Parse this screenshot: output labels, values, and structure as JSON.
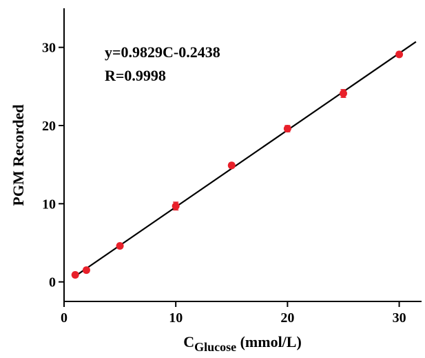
{
  "chart_data": {
    "type": "scatter",
    "title": "",
    "xlabel_main": "C",
    "xlabel_sub": "Glucose",
    "xlabel_unit": " (mmol/L)",
    "ylabel": "PGM Recorded",
    "xlim": [
      0,
      32
    ],
    "ylim": [
      -2.5,
      35
    ],
    "x_ticks": [
      0,
      10,
      20,
      30
    ],
    "x_tick_labels": [
      "0",
      "10",
      "20",
      "30"
    ],
    "y_ticks": [
      0,
      10,
      20,
      30
    ],
    "y_tick_labels": [
      "0",
      "10",
      "20",
      "30"
    ],
    "grid": false,
    "legend": "none",
    "series": [
      {
        "x": [
          1,
          2,
          5,
          10,
          15,
          20,
          25,
          30
        ],
        "y": [
          0.9,
          1.5,
          4.6,
          9.7,
          14.9,
          19.6,
          24.1,
          29.1
        ],
        "error": [
          0.3,
          0.3,
          0.3,
          0.5,
          0.3,
          0.4,
          0.5,
          0.3
        ],
        "color": "#e8202a"
      }
    ],
    "fit": {
      "slope": 0.9829,
      "intercept": -0.2438,
      "x_range": [
        1,
        31.5
      ],
      "color": "#000000"
    },
    "annotations": [
      "y=0.9829C-0.2438",
      "R=0.9998"
    ]
  }
}
